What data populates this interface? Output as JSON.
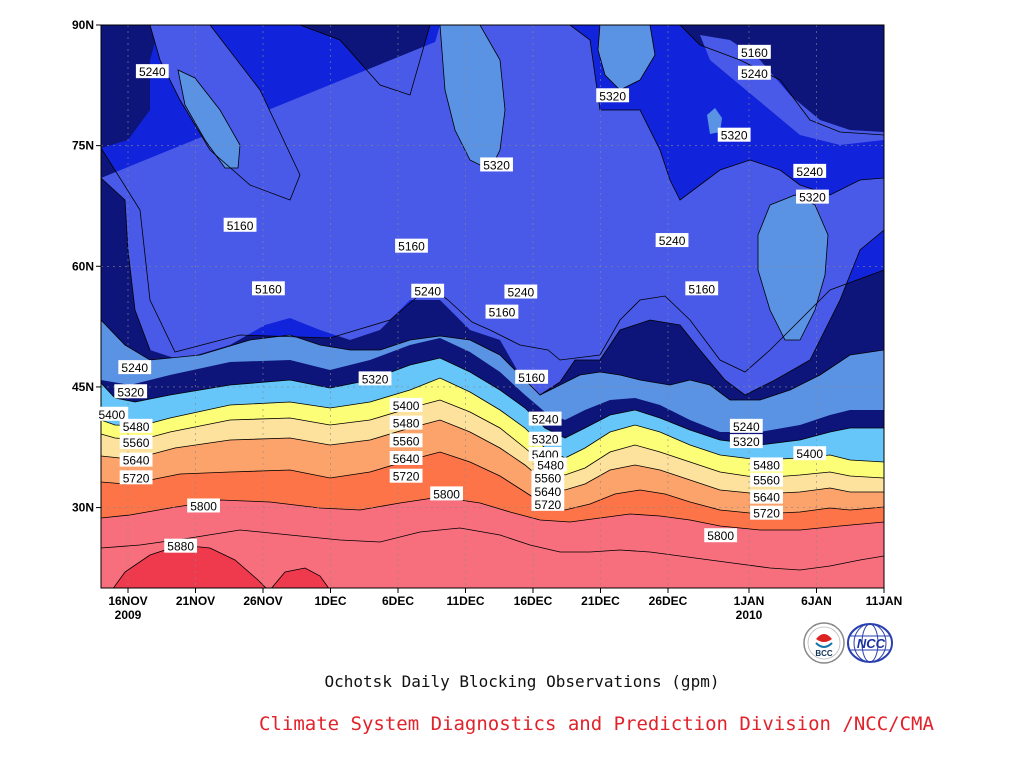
{
  "chart_data": {
    "type": "contour",
    "caption": "Ochotsk Daily Blocking Observations (gpm)",
    "xlabel": "",
    "ylabel": "",
    "x_ticks": [
      {
        "label": "16NOV",
        "sublabel": "2009",
        "day": 0
      },
      {
        "label": "21NOV",
        "sublabel": "",
        "day": 5
      },
      {
        "label": "26NOV",
        "sublabel": "",
        "day": 10
      },
      {
        "label": "1DEC",
        "sublabel": "",
        "day": 15
      },
      {
        "label": "6DEC",
        "sublabel": "",
        "day": 20
      },
      {
        "label": "11DEC",
        "sublabel": "",
        "day": 25
      },
      {
        "label": "16DEC",
        "sublabel": "",
        "day": 30
      },
      {
        "label": "21DEC",
        "sublabel": "",
        "day": 35
      },
      {
        "label": "26DEC",
        "sublabel": "",
        "day": 40
      },
      {
        "label": "1JAN",
        "sublabel": "2010",
        "day": 46
      },
      {
        "label": "6JAN",
        "sublabel": "",
        "day": 51
      },
      {
        "label": "11JAN",
        "sublabel": "",
        "day": 56
      }
    ],
    "xlim": [
      -2,
      56
    ],
    "y_ticks": [
      {
        "label": "30N",
        "value": 30
      },
      {
        "label": "45N",
        "value": 45
      },
      {
        "label": "60N",
        "value": 60
      },
      {
        "label": "75N",
        "value": 75
      },
      {
        "label": "90N",
        "value": 90
      }
    ],
    "ylim": [
      20,
      90
    ],
    "grid": true,
    "contour_levels": [
      5160,
      5240,
      5320,
      5400,
      5480,
      5560,
      5640,
      5720,
      5800,
      5880
    ],
    "fill_colors": {
      "below_5160": "#0d157a",
      "5160_5240": "#1124dc",
      "5240_5320": "#4a5ae8",
      "5320_5400": "#5a92e4",
      "5400_5480": "#66c6fa",
      "5480_5560": "#fdfe78",
      "5560_5640": "#fde29e",
      "5640_5720": "#fca36c",
      "5720_5800": "#fc7448",
      "5800_5880": "#f76f7d",
      "above_5880": "#ef3a4d"
    },
    "contour_labels": [
      {
        "text": "5240",
        "day": 1.8,
        "lat": 84.2
      },
      {
        "text": "5160",
        "day": 8.3,
        "lat": 65.1
      },
      {
        "text": "5160",
        "day": 10.4,
        "lat": 57.2
      },
      {
        "text": "5240",
        "day": 0.5,
        "lat": 47.4
      },
      {
        "text": "5320",
        "day": 0.2,
        "lat": 44.4
      },
      {
        "text": "5400",
        "day": -1.2,
        "lat": 41.6
      },
      {
        "text": "5480",
        "day": 0.6,
        "lat": 40.1
      },
      {
        "text": "5560",
        "day": 0.6,
        "lat": 38.1
      },
      {
        "text": "5640",
        "day": 0.6,
        "lat": 35.9
      },
      {
        "text": "5720",
        "day": 0.6,
        "lat": 33.7
      },
      {
        "text": "5800",
        "day": 5.6,
        "lat": 30.2
      },
      {
        "text": "5880",
        "day": 3.9,
        "lat": 25.2
      },
      {
        "text": "5160",
        "day": 21.0,
        "lat": 62.5
      },
      {
        "text": "5240",
        "day": 22.2,
        "lat": 56.9
      },
      {
        "text": "5320",
        "day": 18.3,
        "lat": 46.0
      },
      {
        "text": "5400",
        "day": 20.6,
        "lat": 42.7
      },
      {
        "text": "5480",
        "day": 20.6,
        "lat": 40.5
      },
      {
        "text": "5560",
        "day": 20.6,
        "lat": 38.3
      },
      {
        "text": "5640",
        "day": 20.6,
        "lat": 36.1
      },
      {
        "text": "5720",
        "day": 20.6,
        "lat": 33.9
      },
      {
        "text": "5800",
        "day": 23.6,
        "lat": 31.7
      },
      {
        "text": "5320",
        "day": 27.3,
        "lat": 72.6
      },
      {
        "text": "5240",
        "day": 29.1,
        "lat": 56.8
      },
      {
        "text": "5160",
        "day": 27.7,
        "lat": 54.3
      },
      {
        "text": "5160",
        "day": 29.9,
        "lat": 46.2
      },
      {
        "text": "5240",
        "day": 30.9,
        "lat": 41.0
      },
      {
        "text": "5320",
        "day": 30.9,
        "lat": 38.5
      },
      {
        "text": "5400",
        "day": 30.9,
        "lat": 36.6
      },
      {
        "text": "5480",
        "day": 31.3,
        "lat": 35.3
      },
      {
        "text": "5560",
        "day": 31.1,
        "lat": 33.7
      },
      {
        "text": "5640",
        "day": 31.1,
        "lat": 32.0
      },
      {
        "text": "5720",
        "day": 31.1,
        "lat": 30.4
      },
      {
        "text": "5320",
        "day": 35.9,
        "lat": 81.2
      },
      {
        "text": "5240",
        "day": 40.3,
        "lat": 63.2
      },
      {
        "text": "5160",
        "day": 42.5,
        "lat": 57.2
      },
      {
        "text": "5320",
        "day": 44.9,
        "lat": 76.3
      },
      {
        "text": "5160",
        "day": 46.4,
        "lat": 86.6
      },
      {
        "text": "5240",
        "day": 46.4,
        "lat": 84.0
      },
      {
        "text": "5240",
        "day": 50.5,
        "lat": 71.8
      },
      {
        "text": "5320",
        "day": 50.7,
        "lat": 68.6
      },
      {
        "text": "5240",
        "day": 45.8,
        "lat": 40.1
      },
      {
        "text": "5320",
        "day": 45.8,
        "lat": 38.2
      },
      {
        "text": "5400",
        "day": 50.5,
        "lat": 36.7
      },
      {
        "text": "5480",
        "day": 47.3,
        "lat": 35.3
      },
      {
        "text": "5560",
        "day": 47.3,
        "lat": 33.4
      },
      {
        "text": "5640",
        "day": 47.3,
        "lat": 31.3
      },
      {
        "text": "5720",
        "day": 47.3,
        "lat": 29.3
      },
      {
        "text": "5800",
        "day": 43.9,
        "lat": 26.5
      }
    ]
  },
  "footer": {
    "credit": "Climate System Diagnostics and Prediction Division /NCC/CMA",
    "logo_left_text": "BCC",
    "logo_right_text": "NCC"
  }
}
